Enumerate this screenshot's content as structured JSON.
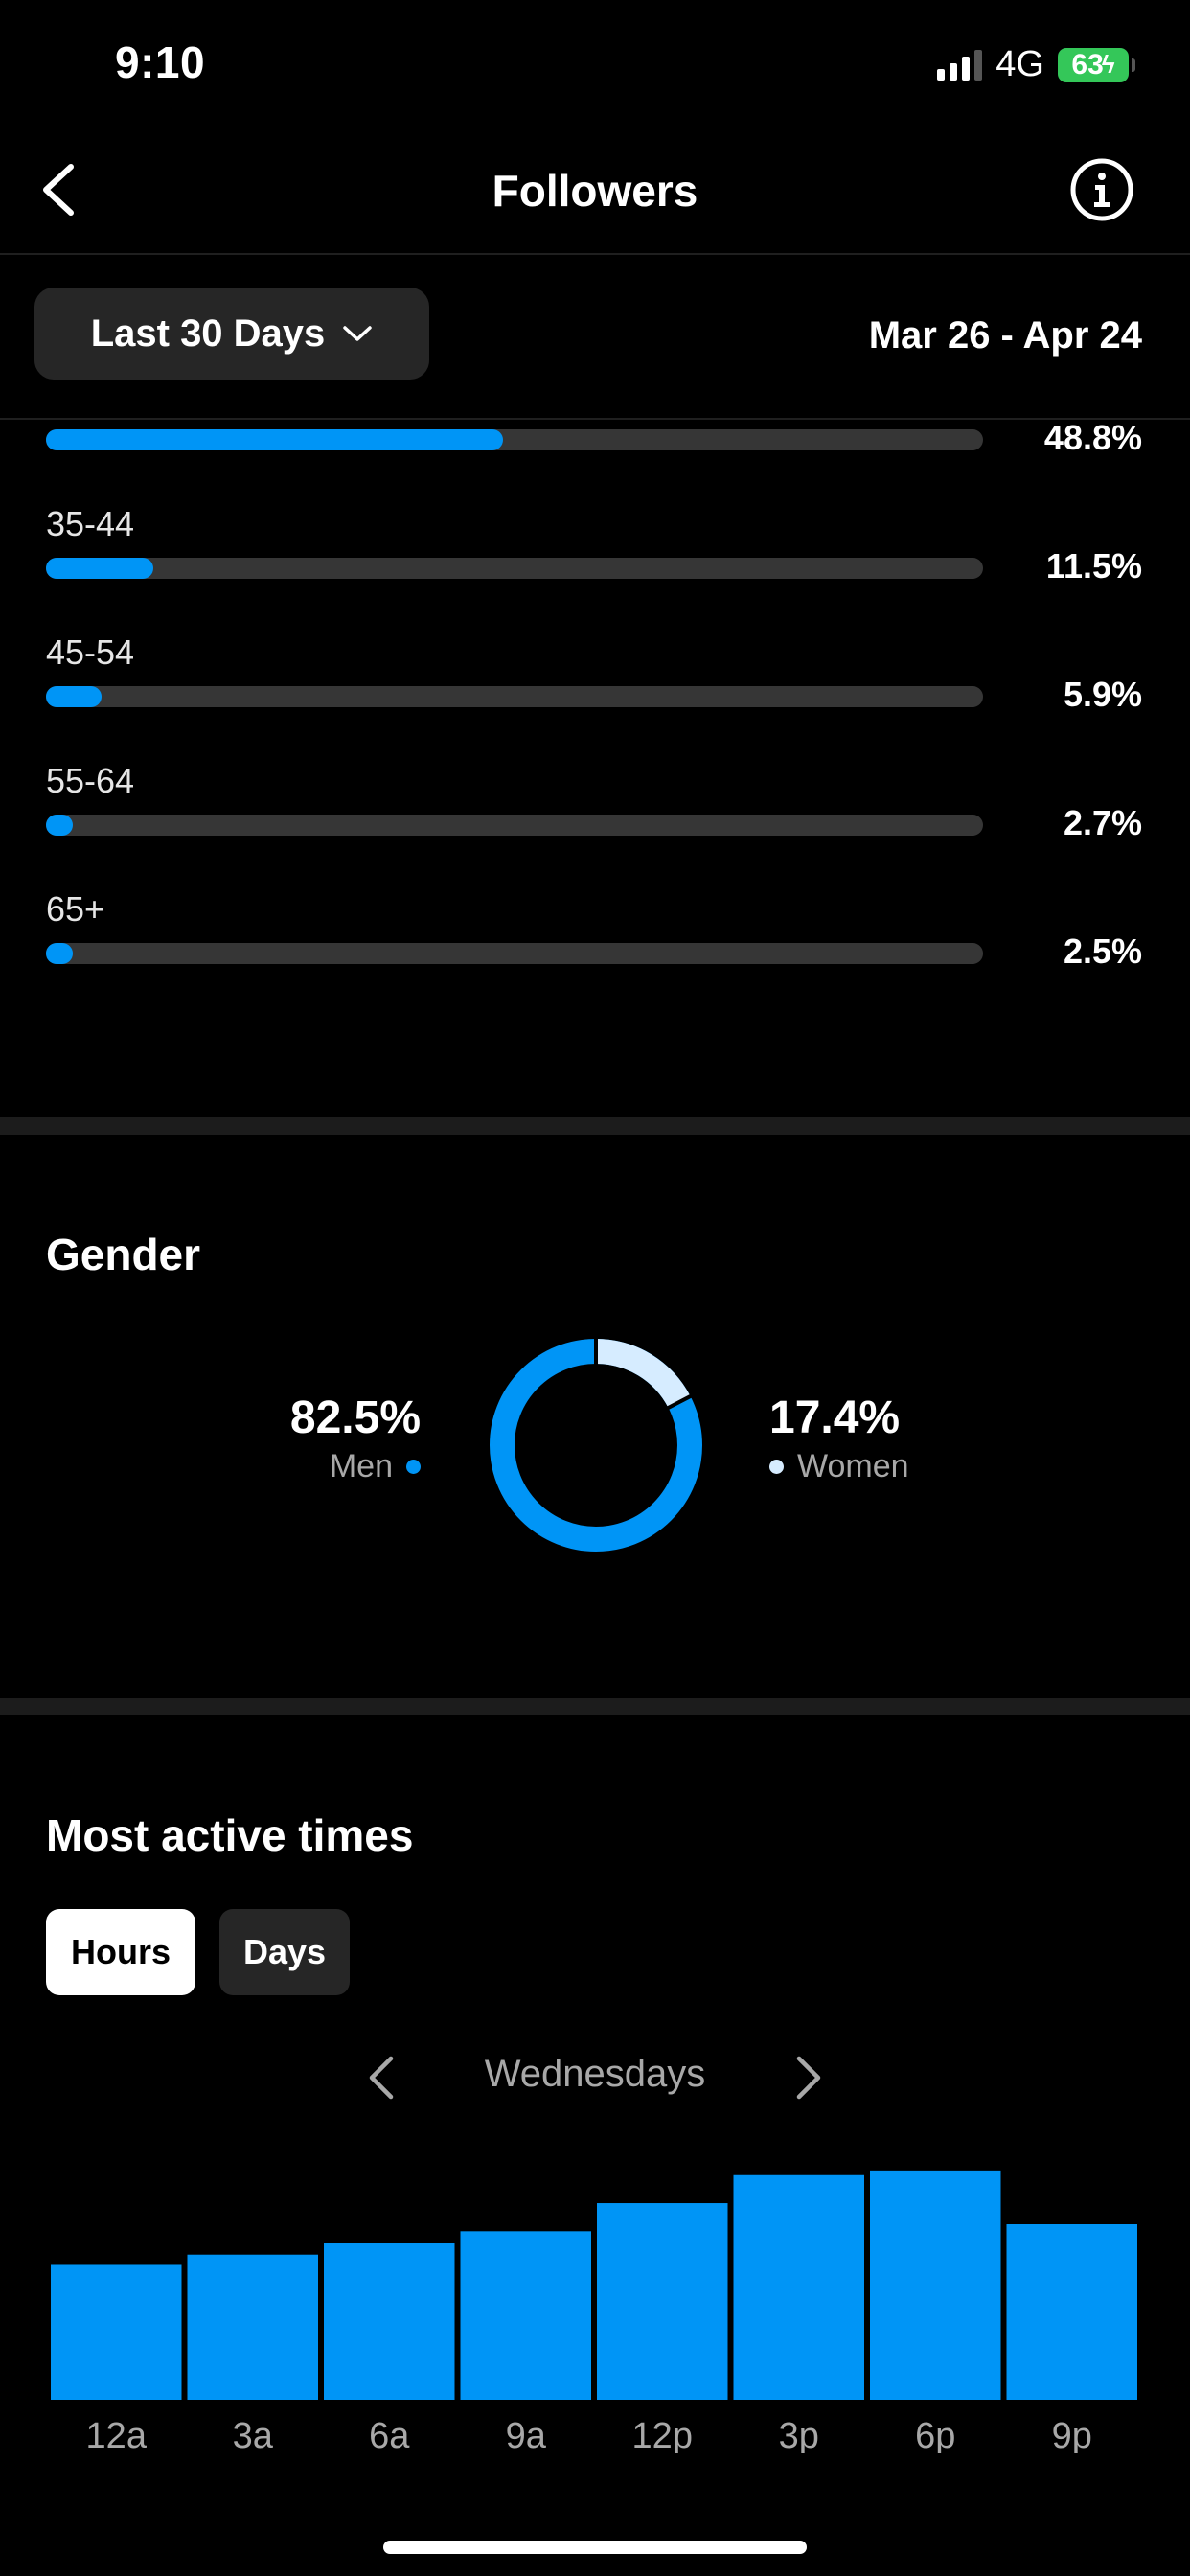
{
  "status_bar": {
    "time": "9:10",
    "network": "4G",
    "battery": "63"
  },
  "header": {
    "title": "Followers"
  },
  "filter": {
    "label": "Last 30 Days",
    "date_range": "Mar 26 - Apr 24"
  },
  "age": {
    "rows": [
      {
        "label": "",
        "percent": "48.8%",
        "value": 48.8
      },
      {
        "label": "35-44",
        "percent": "11.5%",
        "value": 11.5
      },
      {
        "label": "45-54",
        "percent": "5.9%",
        "value": 5.9
      },
      {
        "label": "55-64",
        "percent": "2.7%",
        "value": 2.7
      },
      {
        "label": "65+",
        "percent": "2.5%",
        "value": 2.5
      }
    ]
  },
  "gender": {
    "title": "Gender",
    "men": {
      "percent": "82.5%",
      "label": "Men",
      "value": 82.5
    },
    "women": {
      "percent": "17.4%",
      "label": "Women",
      "value": 17.4
    }
  },
  "active": {
    "title": "Most active times",
    "tabs": {
      "hours": "Hours",
      "days": "Days"
    },
    "day": "Wednesdays"
  },
  "colors": {
    "accent": "#0095f6",
    "track": "#363636",
    "women": "#d6ecff"
  },
  "chart_data": {
    "type": "bar",
    "categories": [
      "12a",
      "3a",
      "6a",
      "9a",
      "12p",
      "3p",
      "6p",
      "9p"
    ],
    "values": [
      58,
      62,
      67,
      72,
      84,
      96,
      98,
      75
    ],
    "ylim": [
      0,
      100
    ],
    "title": "",
    "xlabel": "",
    "ylabel": ""
  }
}
